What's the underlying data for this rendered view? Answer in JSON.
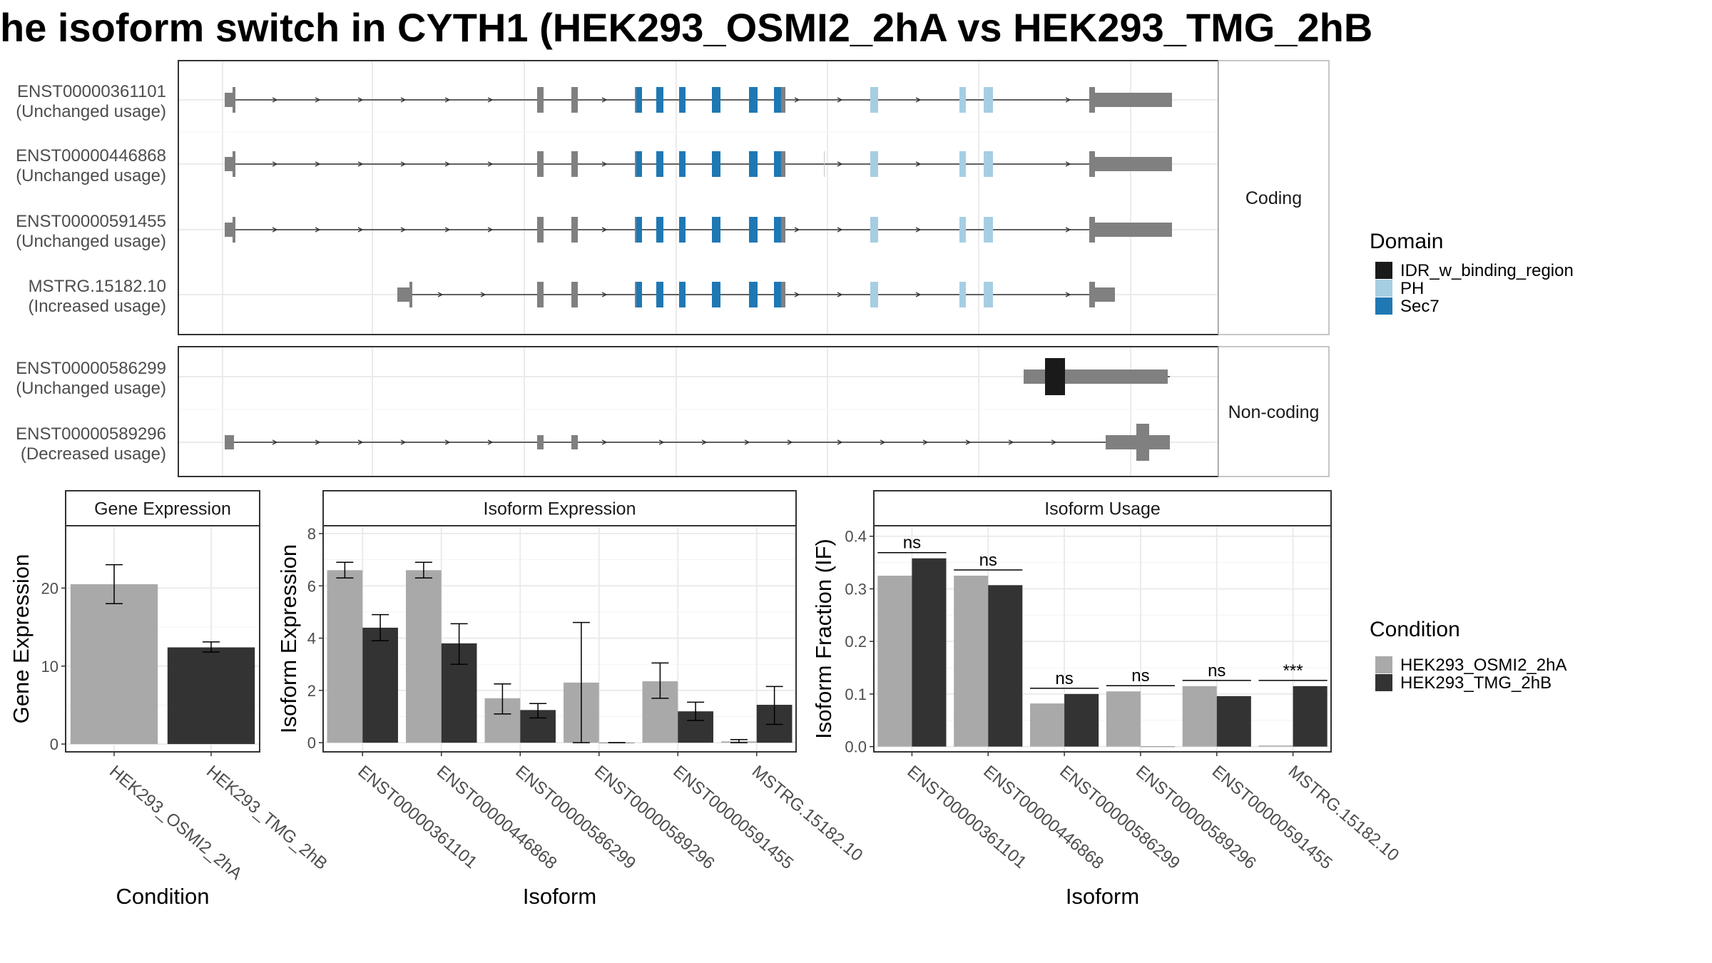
{
  "title": "he isoform switch in CYTH1 (HEK293_OSMI2_2hA vs HEK293_TMG_2hB",
  "colors": {
    "exon": "#808080",
    "IDR_w_binding_region": "#1a1a1a",
    "PH": "#a6cee3",
    "Sec7": "#1f78b4",
    "HEK293_OSMI2_2hA": "#a9a9a9",
    "HEK293_TMG_2hB": "#333333",
    "grid": "#ebebeb",
    "panel_border": "#333333",
    "strip_fill": "#ffffff"
  },
  "structure_panels": [
    {
      "facet_label": "Coding",
      "transcripts": [
        {
          "id": "ENST00000361101",
          "usage": "(Unchanged usage)"
        },
        {
          "id": "ENST00000446868",
          "usage": "(Unchanged usage)"
        },
        {
          "id": "ENST00000591455",
          "usage": "(Unchanged usage)"
        },
        {
          "id": "MSTRG.15182.10",
          "usage": "(Increased usage)"
        }
      ]
    },
    {
      "facet_label": "Non-coding",
      "transcripts": [
        {
          "id": "ENST00000586299",
          "usage": "(Unchanged usage)"
        },
        {
          "id": "ENST00000589296",
          "usage": "(Decreased usage)"
        }
      ]
    }
  ],
  "domain_legend": {
    "title": "Domain",
    "items": [
      "IDR_w_binding_region",
      "PH",
      "Sec7"
    ]
  },
  "condition_legend": {
    "title": "Condition",
    "items": [
      "HEK293_OSMI2_2hA",
      "HEK293_TMG_2hB"
    ]
  },
  "chart_data": [
    {
      "type": "bar",
      "title": "Gene Expression",
      "xlabel": "Condition",
      "ylabel": "Gene Expression",
      "categories": [
        "HEK293_OSMI2_2hA",
        "HEK293_TMG_2hB"
      ],
      "values": [
        20.5,
        12.4
      ],
      "error": [
        [
          18.0,
          23.0
        ],
        [
          11.8,
          13.1
        ]
      ],
      "ylim": [
        -1,
        28
      ],
      "yticks": [
        0,
        10,
        20
      ]
    },
    {
      "type": "bar",
      "title": "Isoform Expression",
      "xlabel": "Isoform",
      "ylabel": "Isoform Expression",
      "categories": [
        "ENST00000361101",
        "ENST00000446868",
        "ENST00000586299",
        "ENST00000589296",
        "ENST00000591455",
        "MSTRG.15182.10"
      ],
      "series": [
        {
          "name": "HEK293_OSMI2_2hA",
          "values": [
            6.6,
            6.6,
            1.7,
            2.3,
            2.35,
            0.05
          ],
          "error": [
            [
              6.3,
              6.9
            ],
            [
              6.3,
              6.9
            ],
            [
              1.1,
              2.25
            ],
            [
              0.0,
              4.6
            ],
            [
              1.7,
              3.05
            ],
            [
              0.0,
              0.12
            ]
          ]
        },
        {
          "name": "HEK293_TMG_2hB",
          "values": [
            4.4,
            3.8,
            1.25,
            0.0,
            1.2,
            1.45
          ],
          "error": [
            [
              3.9,
              4.9
            ],
            [
              3.0,
              4.55
            ],
            [
              0.95,
              1.5
            ],
            [
              0.0,
              0.0
            ],
            [
              0.85,
              1.55
            ],
            [
              0.7,
              2.15
            ]
          ]
        }
      ],
      "ylim": [
        -0.35,
        8.3
      ],
      "yticks": [
        0,
        2,
        4,
        6,
        8
      ]
    },
    {
      "type": "bar",
      "title": "Isoform Usage",
      "xlabel": "Isoform",
      "ylabel": "Isoform Fraction (IF)",
      "categories": [
        "ENST00000361101",
        "ENST00000446868",
        "ENST00000586299",
        "ENST00000589296",
        "ENST00000591455",
        "MSTRG.15182.10"
      ],
      "series": [
        {
          "name": "HEK293_OSMI2_2hA",
          "values": [
            0.325,
            0.325,
            0.082,
            0.105,
            0.115,
            0.002
          ]
        },
        {
          "name": "HEK293_TMG_2hB",
          "values": [
            0.358,
            0.307,
            0.1,
            0.0,
            0.096,
            0.115
          ]
        }
      ],
      "significance": [
        "ns",
        "ns",
        "ns",
        "ns",
        "ns",
        "***"
      ],
      "ylim": [
        -0.01,
        0.42
      ],
      "yticks": [
        0.0,
        0.1,
        0.2,
        0.3,
        0.4
      ],
      "ytick_labels": [
        "0.0",
        "0.1",
        "0.2",
        "0.3",
        "0.4"
      ]
    }
  ]
}
